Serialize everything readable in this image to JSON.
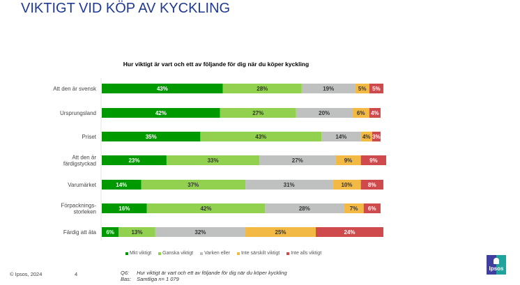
{
  "page": {
    "title": "VIKTIGT VID KÖP AV KYCKLING",
    "copyright": "© Ipsos, 2024",
    "page_number": "4",
    "footnote": {
      "q_label": "Q6:",
      "q_text": "Hur viktigt är vart och ett av följande för dig när du köper kyckling",
      "base_label": "Bas:",
      "base_text": "Samtliga n= 1 079"
    },
    "logo_text": "Ipsos"
  },
  "chart_data": {
    "type": "bar",
    "orientation": "horizontal",
    "stacked": true,
    "title": "Hur viktigt är vart och ett av följande för dig när du köper kyckling",
    "xlabel": "",
    "ylabel": "",
    "categories": [
      "Att den är svensk",
      "Ursprungsland",
      "Priset",
      "Att den är färdigstyckad",
      "Varumärket",
      "Förpackningsstorleken",
      "Färdig att äta"
    ],
    "category_lines": [
      [
        "Att den är svensk"
      ],
      [
        "Ursprungsland"
      ],
      [
        "Priset"
      ],
      [
        "Att den är",
        "färdigstyckad"
      ],
      [
        "Varumärket"
      ],
      [
        "Förpacknings-",
        "storleken"
      ],
      [
        "Färdig att äta"
      ]
    ],
    "series": [
      {
        "name": "Mkt viktigt",
        "color": "#009a00",
        "label_color": "#ffffff",
        "values": [
          43,
          42,
          35,
          23,
          14,
          16,
          6
        ]
      },
      {
        "name": "Ganska viktigt",
        "color": "#92d050",
        "label_color": "#333333",
        "values": [
          28,
          27,
          43,
          33,
          37,
          42,
          13
        ]
      },
      {
        "name": "Varken eller",
        "color": "#bfc1c0",
        "label_color": "#333333",
        "values": [
          19,
          20,
          14,
          27,
          31,
          28,
          32
        ]
      },
      {
        "name": "Inte särskilt viktigt",
        "color": "#f2b945",
        "label_color": "#333333",
        "values": [
          5,
          6,
          4,
          9,
          10,
          7,
          25
        ]
      },
      {
        "name": "Inte alls viktigt",
        "color": "#cf4a4d",
        "label_color": "#ffffff",
        "values": [
          5,
          4,
          3,
          9,
          8,
          6,
          24
        ]
      }
    ],
    "value_suffix": "%",
    "xlim": [
      0,
      100
    ],
    "grid": false,
    "legend_position": "bottom"
  }
}
